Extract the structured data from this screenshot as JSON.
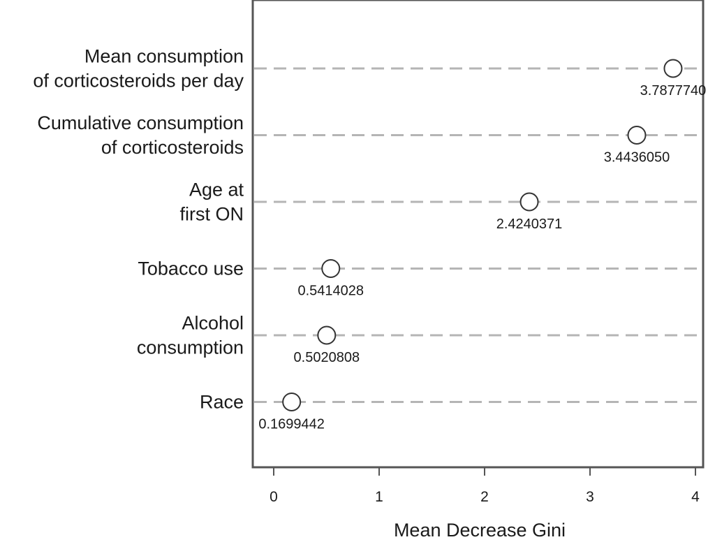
{
  "chart_data": {
    "type": "scatter",
    "xlabel": "Mean Decrease Gini",
    "ylabel": "",
    "xlim": [
      -0.2,
      4.07
    ],
    "x_ticks": [
      "0",
      "1",
      "2",
      "3",
      "4"
    ],
    "x_tick_values": [
      0,
      1,
      2,
      3,
      4
    ],
    "grid": "dashed horizontal lines per category",
    "categories": [
      [
        "Mean consumption",
        "of corticosteroids per day"
      ],
      [
        "Cumulative consumption",
        "of corticosteroids"
      ],
      [
        "Age at",
        "first ON"
      ],
      [
        "Tobacco use"
      ],
      [
        "Alcohol",
        "consumption"
      ],
      [
        "Race"
      ]
    ],
    "values": [
      3.787774,
      3.443605,
      2.4240371,
      0.5414028,
      0.5020808,
      0.1699442
    ],
    "value_labels": [
      "3.7877740",
      "3.4436050",
      "2.4240371",
      "0.5414028",
      "0.5020808",
      "0.1699442"
    ],
    "colors": {
      "frame": "#555555",
      "gridline": "#b5b5b5",
      "marker_stroke": "#333333",
      "marker_fill": "#ffffff"
    }
  }
}
